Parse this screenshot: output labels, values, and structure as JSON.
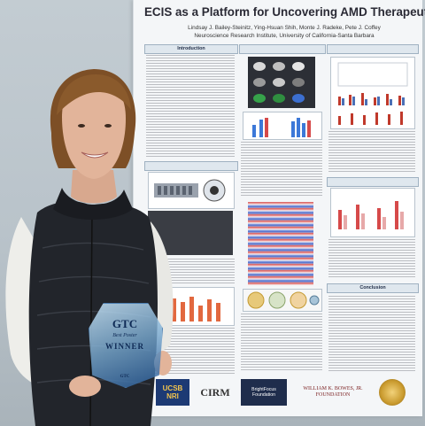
{
  "poster": {
    "title": "ECIS as a Platform for Uncovering AMD Therapeutics",
    "authors": "Lindsay J. Bailey-Steinitz, Ying-Hsuan Shih, Monte J. Radeke, Pete J. Coffey",
    "affiliation": "Neuroscience Research Institute, University of California-Santa Barbara",
    "sections": {
      "introduction": "Introduction",
      "conclusion": "Conclusion"
    },
    "logos": {
      "ucsb_line1": "UCSB",
      "ucsb_line2": "NRI",
      "cirm": "CIRM",
      "brightfocus_line1": "BrightFocus",
      "brightfocus_line2": "Foundation",
      "bowes_line1": "WILLIAM K. BOWES, JR.",
      "bowes_line2": "FOUNDATION"
    }
  },
  "award": {
    "logo": "GTC",
    "category": "Best Poster",
    "title": "WINNER",
    "abbrev": "GTC"
  },
  "colors": {
    "vest": "#22252b",
    "shirt": "#eeeeea",
    "hair": "#8a5a2c",
    "skin": "#e2b49a",
    "award_glass": "#6fa3d1"
  }
}
